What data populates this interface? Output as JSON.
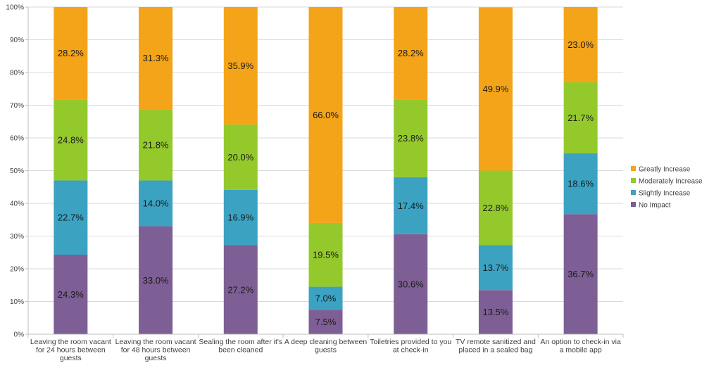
{
  "chart_data": {
    "type": "bar",
    "stacked": true,
    "title": "",
    "xlabel": "",
    "ylabel": "",
    "ylim": [
      0,
      100
    ],
    "yticks": [
      "0%",
      "10%",
      "20%",
      "30%",
      "40%",
      "50%",
      "60%",
      "70%",
      "80%",
      "90%",
      "100%"
    ],
    "grid": true,
    "legend_position": "right",
    "categories": [
      [
        "Leaving the room vacant",
        "for 24 hours between",
        "guests"
      ],
      [
        "Leaving the room vacant",
        "for 48 hours between",
        "guests"
      ],
      [
        "Sealing the room after it's",
        "been cleaned"
      ],
      [
        "A deep cleaning between",
        "guests"
      ],
      [
        "Toiletries provided to you",
        "at check-in"
      ],
      [
        "TV remote sanitized and",
        "placed in a sealed bag"
      ],
      [
        "An option to check-in via",
        "a mobile app"
      ]
    ],
    "series": [
      {
        "name": "No Impact",
        "color": "#7d5f95",
        "values": [
          24.3,
          33.0,
          27.2,
          7.5,
          30.6,
          13.5,
          36.7
        ],
        "labels": [
          "24.3%",
          "33.0%",
          "27.2%",
          "7.5%",
          "30.6%",
          "13.5%",
          "36.7%"
        ]
      },
      {
        "name": "Slightly Increase",
        "color": "#3ba2c2",
        "values": [
          22.7,
          14.0,
          16.9,
          7.0,
          17.4,
          13.7,
          18.6
        ],
        "labels": [
          "22.7%",
          "14.0%",
          "16.9%",
          "7.0%",
          "17.4%",
          "13.7%",
          "18.6%"
        ]
      },
      {
        "name": "Moderately Increase",
        "color": "#94c92c",
        "values": [
          24.8,
          21.8,
          20.0,
          19.5,
          23.8,
          22.8,
          21.7
        ],
        "labels": [
          "24.8%",
          "21.8%",
          "20.0%",
          "19.5%",
          "23.8%",
          "22.8%",
          "21.7%"
        ]
      },
      {
        "name": "Greatly Increase",
        "color": "#f4a419",
        "values": [
          28.2,
          31.3,
          35.9,
          66.0,
          28.2,
          49.9,
          23.0
        ],
        "labels": [
          "28.2%",
          "31.3%",
          "35.9%",
          "66.0%",
          "28.2%",
          "49.9%",
          "23.0%"
        ]
      }
    ],
    "legend_order": [
      "Greatly Increase",
      "Moderately Increase",
      "Slightly Increase",
      "No Impact"
    ]
  }
}
